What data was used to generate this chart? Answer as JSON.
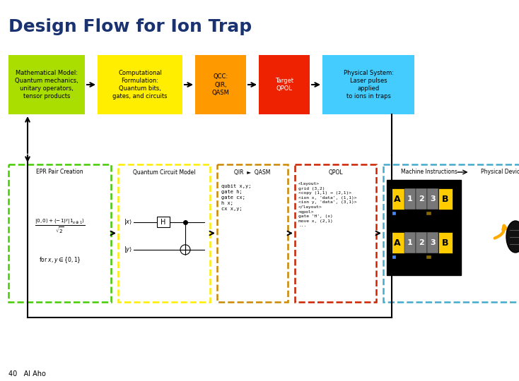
{
  "title": "Design Flow for Ion Trap",
  "title_color": "#1a3370",
  "title_fontsize": 18,
  "bg_color": "#ffffff",
  "top_boxes": [
    {
      "label": "Mathematical Model:\nQuantum mechanics,\nunitary operators,\ntensor products",
      "color": "#aadd00",
      "text_color": "#000000"
    },
    {
      "label": "Computational\nFormulation:\nQuantum bits,\ngates, and circuits",
      "color": "#ffee00",
      "text_color": "#000000"
    },
    {
      "label": "QCC:\nQIR,\nQASM",
      "color": "#ff9900",
      "text_color": "#000000"
    },
    {
      "label": "Target\nQPOL",
      "color": "#ee2200",
      "text_color": "#ffffff"
    },
    {
      "label": "Physical System:\nLaser pulses\napplied\nto ions in traps",
      "color": "#44ccff",
      "text_color": "#000000"
    }
  ],
  "bot_border_colors": [
    "#44cc00",
    "#ffee00",
    "#cc8800",
    "#cc2200",
    "#44aacc"
  ],
  "footer": "40   Al Aho",
  "footer_fontsize": 7
}
